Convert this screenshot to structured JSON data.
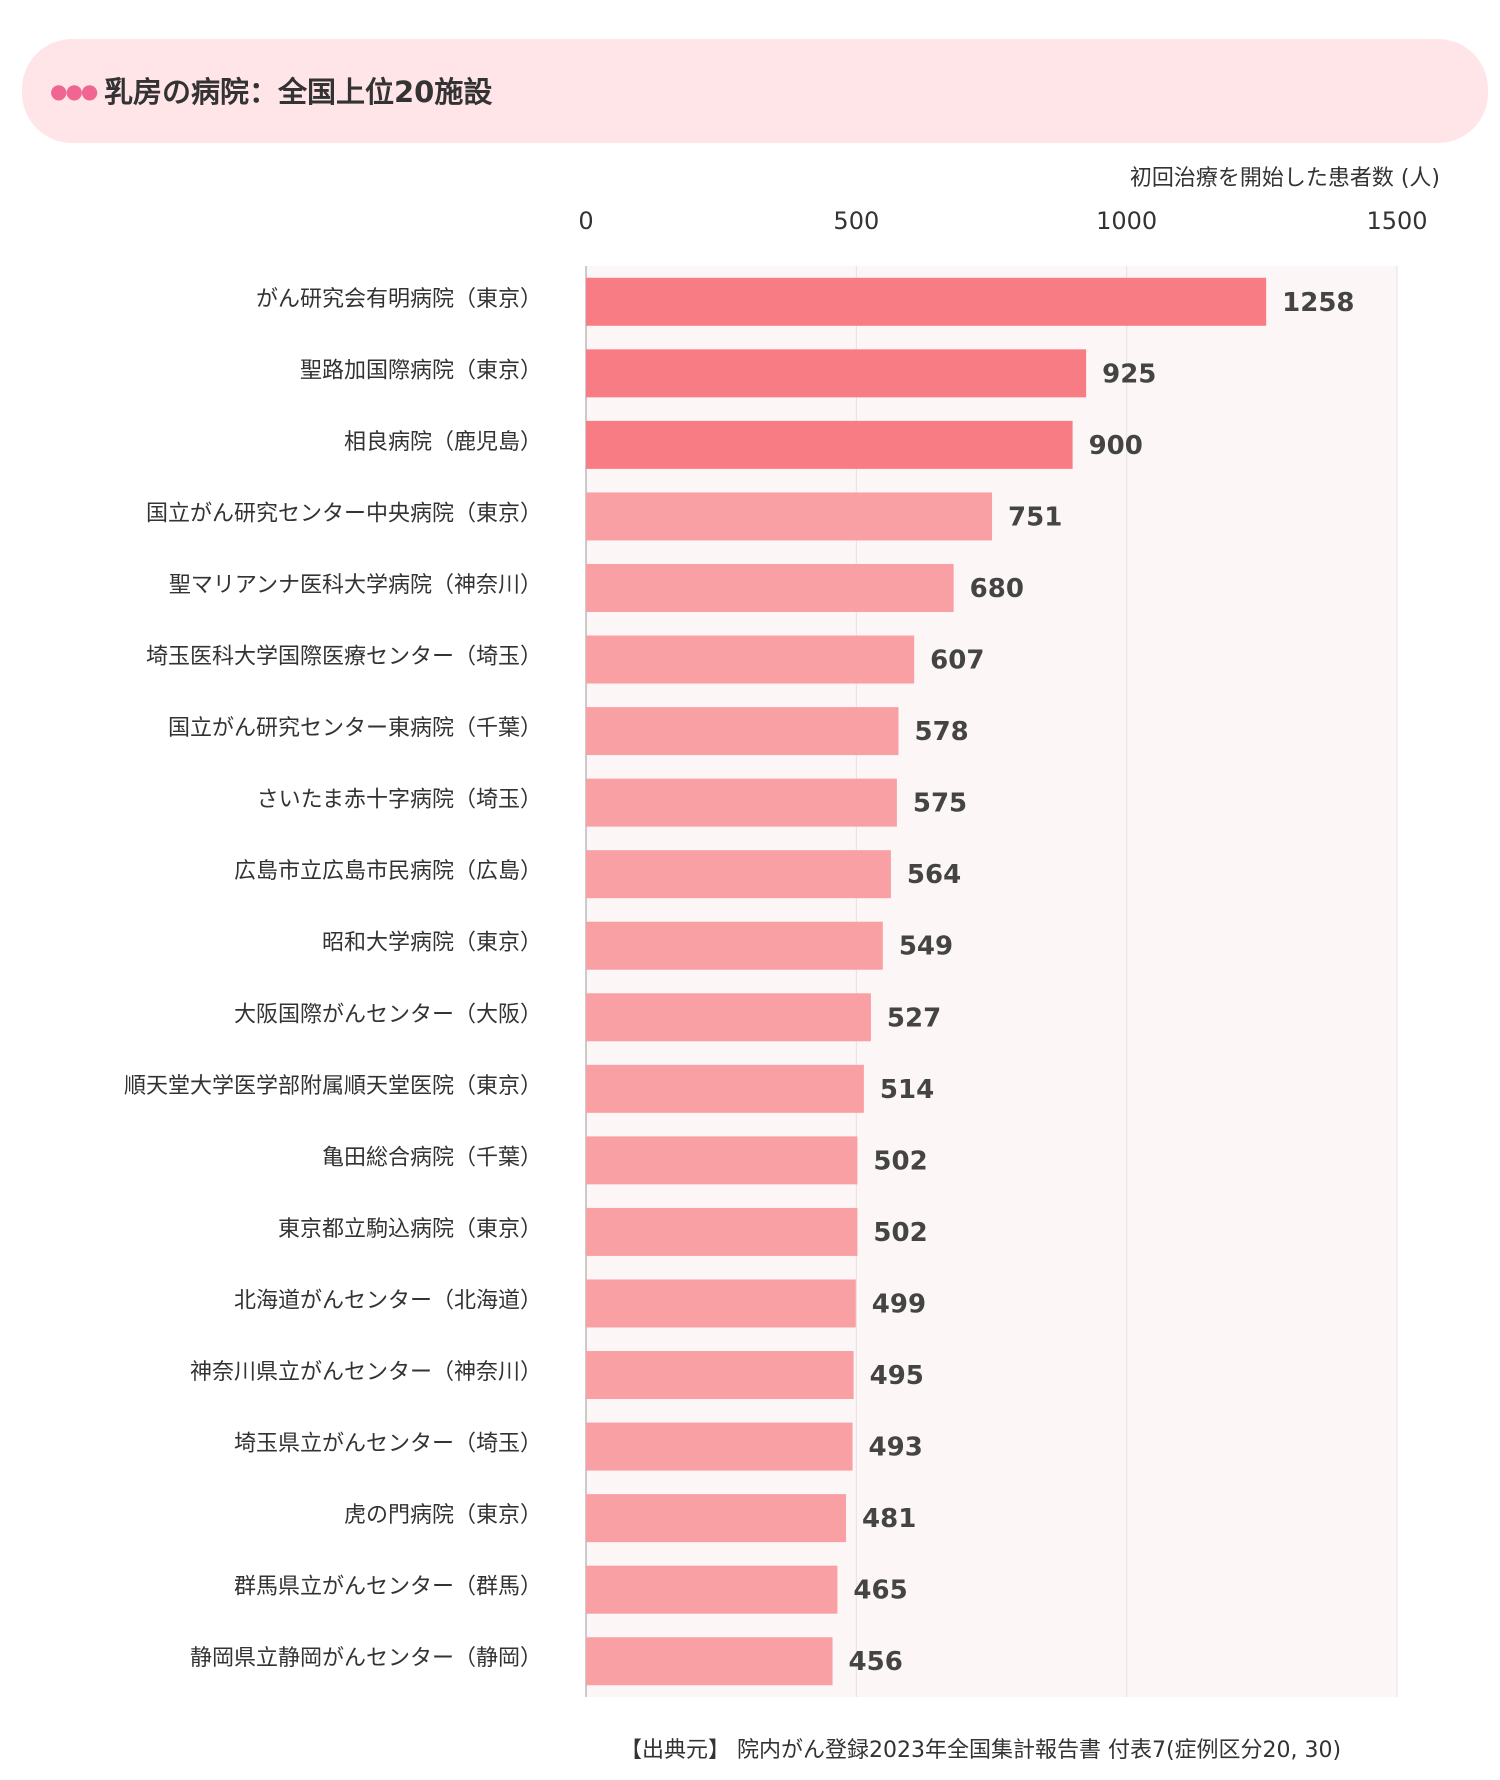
{
  "title": "乳房の病院：全国上位20施設",
  "source": "【出典元】 院内がん登録2023年全国集計報告書 付表7(症例区分20, 30)",
  "chart_data": {
    "type": "bar",
    "orientation": "horizontal",
    "title": "乳房の病院：全国上位20施設",
    "xlabel": "初回治療を開始した患者数 (人)",
    "xlim": [
      0,
      1500
    ],
    "xticks": [
      0,
      500,
      1000,
      1500
    ],
    "grid": true,
    "highlight_color": "#f87c84",
    "bar_color": "#f9a0a5",
    "highlight_top_n": 3,
    "categories": [
      "がん研究会有明病院（東京）",
      "聖路加国際病院（東京）",
      "相良病院（鹿児島）",
      "国立がん研究センター中央病院（東京）",
      "聖マリアンナ医科大学病院（神奈川）",
      "埼玉医科大学国際医療センター（埼玉）",
      "国立がん研究センター東病院（千葉）",
      "さいたま赤十字病院（埼玉）",
      "広島市立広島市民病院（広島）",
      "昭和大学病院（東京）",
      "大阪国際がんセンター（大阪）",
      "順天堂大学医学部附属順天堂医院（東京）",
      "亀田総合病院（千葉）",
      "東京都立駒込病院（東京）",
      "北海道がんセンター（北海道）",
      "神奈川県立がんセンター（神奈川）",
      "埼玉県立がんセンター（埼玉）",
      "虎の門病院（東京）",
      "群馬県立がんセンター（群馬）",
      "静岡県立静岡がんセンター（静岡）"
    ],
    "values": [
      1258,
      925,
      900,
      751,
      680,
      607,
      578,
      575,
      564,
      549,
      527,
      514,
      502,
      502,
      499,
      495,
      493,
      481,
      465,
      456
    ]
  }
}
